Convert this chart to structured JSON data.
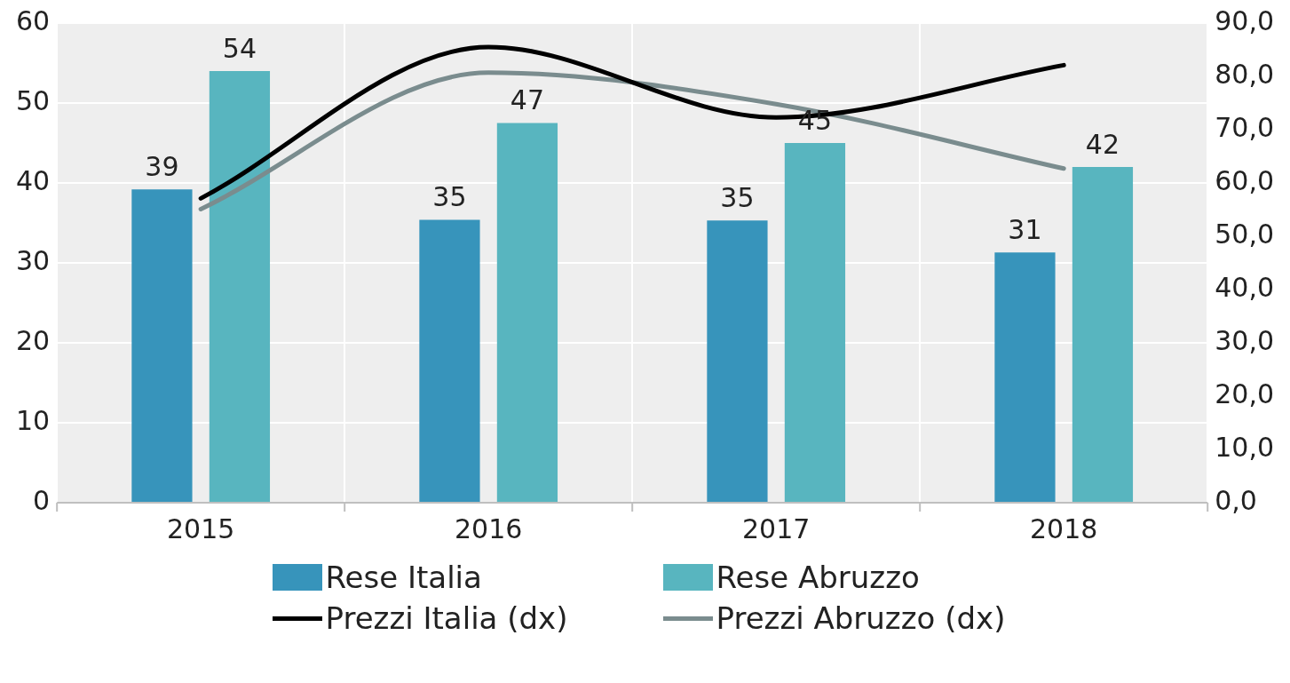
{
  "chart_data": {
    "type": "bar",
    "categories": [
      "2015",
      "2016",
      "2017",
      "2018"
    ],
    "series": [
      {
        "name": "Rese Italia",
        "color": "#3794bb",
        "values": [
          39.2,
          35.4,
          35.3,
          31.3
        ],
        "value_labels": [
          "39",
          "35",
          "35",
          "31"
        ]
      },
      {
        "name": "Rese Abruzzo",
        "color": "#58b5bf",
        "values": [
          54.0,
          47.5,
          45.0,
          42.0
        ],
        "value_labels": [
          "54",
          "47",
          "45",
          "42"
        ]
      },
      {
        "name": "Prezzi Italia (dx)",
        "type": "line",
        "axis": "y2",
        "color": "#000000",
        "values": [
          57.1,
          85.5,
          72.3,
          82.1
        ]
      },
      {
        "name": "Prezzi Abruzzo (dx)",
        "type": "line",
        "axis": "y2",
        "color": "#7a8c8e",
        "values": [
          55.1,
          80.7,
          74.8,
          62.7
        ]
      }
    ],
    "ylim": [
      0,
      60
    ],
    "yticks": [
      0,
      10,
      20,
      30,
      40,
      50,
      60
    ],
    "y2lim": [
      0,
      90
    ],
    "y2ticks": [
      {
        "value": 0,
        "label": "0,0"
      },
      {
        "value": 10,
        "label": "10,0"
      },
      {
        "value": 20,
        "label": "20,0"
      },
      {
        "value": 30,
        "label": "30,0"
      },
      {
        "value": 40,
        "label": "40,0"
      },
      {
        "value": 50,
        "label": "50,0"
      },
      {
        "value": 60,
        "label": "60,0"
      },
      {
        "value": 70,
        "label": "70,0"
      },
      {
        "value": 80,
        "label": "80,0"
      },
      {
        "value": 90,
        "label": "90,0"
      }
    ],
    "grid": true,
    "legend": "bottom",
    "marker": "none",
    "line_style": "solid"
  }
}
